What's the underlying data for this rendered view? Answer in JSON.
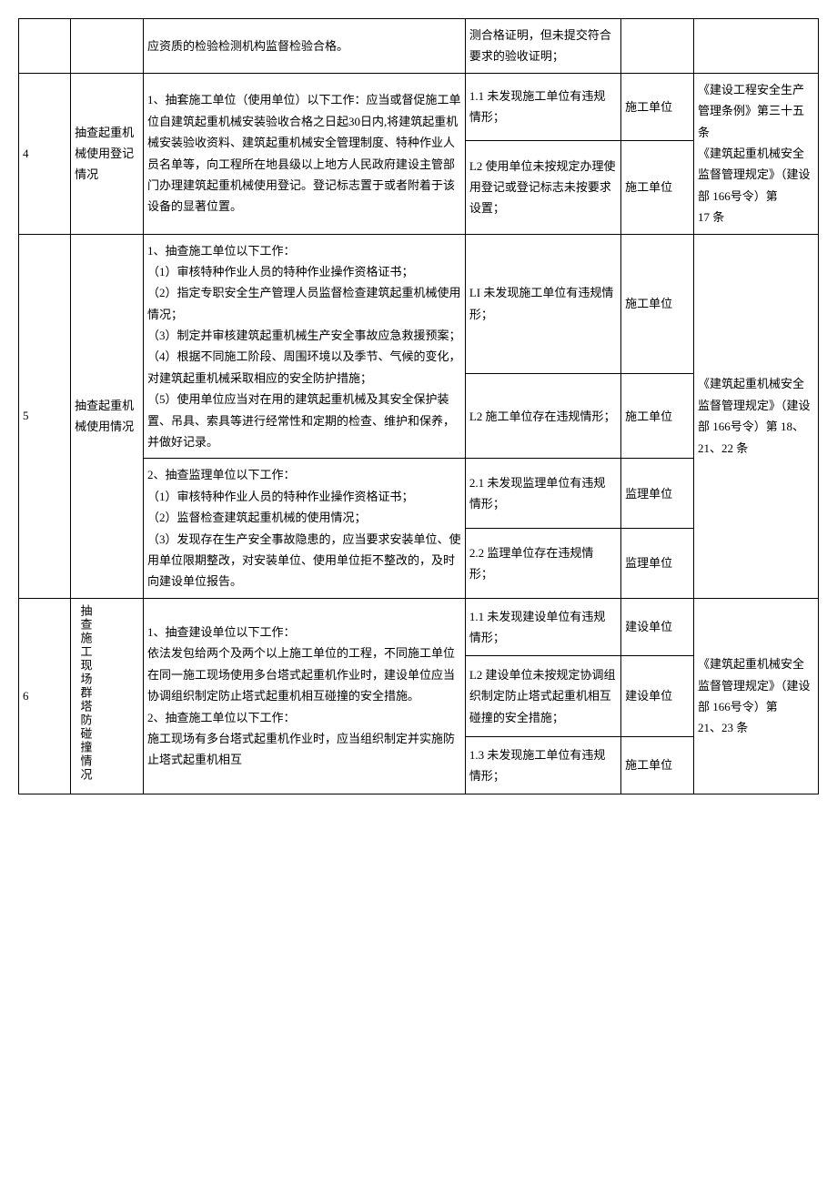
{
  "rows": {
    "r3_partial": {
      "content": "应资质的检验检测机构监督检验合格。",
      "result": "测合格证明，但未提交符合要求的验收证明；"
    },
    "r4": {
      "num": "4",
      "item": "抽查起重机械使用登记情况",
      "content": "1、抽套施工单位（使用单位）以下工作：应当或督促施工单位自建筑起重机械安装验收合格之日起30日内,将建筑起重机械安装验收资料、建筑起重机械安全管理制度、特种作业人员名单等，向工程所在地县级以上地方人民政府建设主管部门办理建筑起重机械使用登记。登记标志置于或者附着于该设备的显著位置。",
      "result1": "1.1 未发现施工单位有违规情形；",
      "unit1": "施工单位",
      "result2": "L2 使用单位未按规定办理使用登记或登记标志未按要求设置；",
      "unit2": "施工单位",
      "basis": "《建设工程安全生产管理条例》第三十五条\n《建筑起重机械安全监督管理规定》（建设部 166号令）第\n17 条"
    },
    "r5": {
      "num": "5",
      "item": "抽查起重机械使用情况",
      "content1": "1、抽查施工单位以下工作：\n（1）审核特种作业人员的特种作业操作资格证书；\n（2）指定专职安全生产管理人员监督检查建筑起重机械使用情况；\n（3）制定并审核建筑起重机械生产安全事故应急救援预案；\n（4）根据不同施工阶段、周围环境以及季节、气候的变化，对建筑起重机械采取相应的安全防护措施；\n（5）使用单位应当对在用的建筑起重机械及其安全保护装置、吊具、索具等进行经常性和定期的检查、维护和保养，并做好记录。",
      "result1_1": "LI 未发现施工单位有违规情形；",
      "unit1_1": "施工单位",
      "result1_2": "L2 施工单位存在违规情形；",
      "unit1_2": "施工单位",
      "content2": "2、抽查监理单位以下工作：\n（1）审核特种作业人员的特种作业操作资格证书；\n（2）监督检查建筑起重机械的使用情况；\n（3）发现存在生产安全事故隐患的，应当要求安装单位、使用单位限期整改，对安装单位、使用单位拒不整改的，及时向建设单位报告。",
      "result2_1": "2.1 未发现监理单位有违规情形；",
      "unit2_1": "监理单位",
      "result2_2": "2.2 监理单位存在违规情形；",
      "unit2_2": "监理单位",
      "basis": "《建筑起重机械安全监督管理规定》（建设部 166号令）第 18、21、22 条"
    },
    "r6": {
      "num": "6",
      "item": "抽查施工现场群塔防碰撞情况",
      "content": "1、抽查建设单位以下工作：\n依法发包给两个及两个以上施工单位的工程，不同施工单位在同一施工现场使用多台塔式起重机作业时，建设单位应当协调组织制定防止塔式起重机相互碰撞的安全措施。\n2、抽查施工单位以下工作：\n施工现场有多台塔式起重机作业时，应当组织制定并实施防止塔式起重机相互",
      "result1": "1.1 未发现建设单位有违规情形；",
      "unit1": "建设单位",
      "result2": "L2 建设单位未按规定协调组织制定防止塔式起重机相互碰撞的安全措施；",
      "unit2": "建设单位",
      "result3": "1.3 未发现施工单位有违规情形；",
      "unit3": "施工单位",
      "basis": "《建筑起重机械安全监督管理规定》（建设部 166号令）第\n21、23 条"
    }
  }
}
